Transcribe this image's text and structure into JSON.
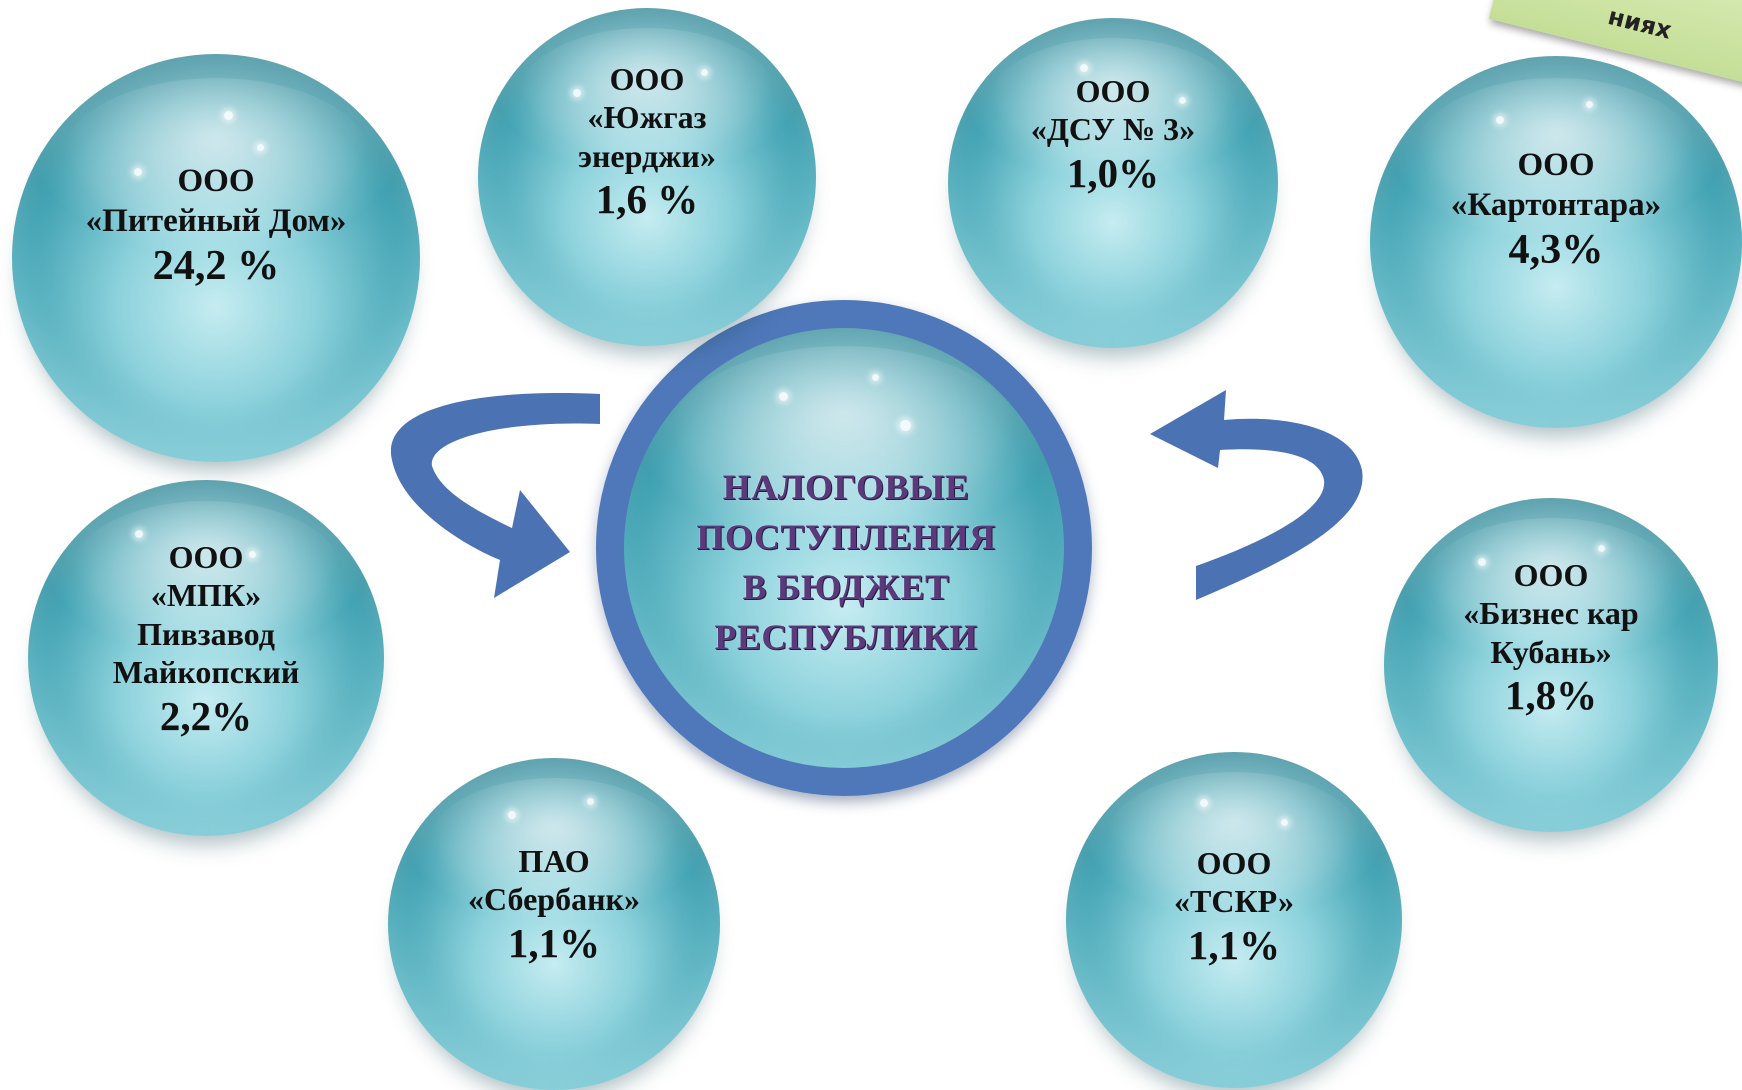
{
  "center": {
    "lines": [
      "НАЛОГОВЫЕ",
      "ПОСТУПЛЕНИЯ",
      "В БЮДЖЕТ",
      "РЕСПУБЛИКИ"
    ]
  },
  "corner_note": {
    "text": "ниях"
  },
  "companies": [
    {
      "id": "piteyny-dom",
      "lines": [
        "ООО",
        "«Питейный Дом»"
      ],
      "share": "24,2 %"
    },
    {
      "id": "yuzhgaz",
      "lines": [
        "ООО",
        "«Южгаз",
        "энерджи»"
      ],
      "share": "1,6 %"
    },
    {
      "id": "dsu3",
      "lines": [
        "ООО",
        "«ДСУ № 3»"
      ],
      "share": "1,0%"
    },
    {
      "id": "kartontara",
      "lines": [
        "ООО",
        "«Картонтара»"
      ],
      "share": "4,3%"
    },
    {
      "id": "mpk",
      "lines": [
        "ООО",
        "«МПК»",
        "Пивзавод",
        "Майкопский"
      ],
      "share": "2,2%"
    },
    {
      "id": "biznes-kar",
      "lines": [
        "ООО",
        "«Бизнес кар",
        "Кубань»"
      ],
      "share": "1,8%"
    },
    {
      "id": "sberbank",
      "lines": [
        "ПАО",
        "«Сбербанк»"
      ],
      "share": "1,1%"
    },
    {
      "id": "tskr",
      "lines": [
        "ООО",
        "«ТСКР»"
      ],
      "share": "1,1%"
    }
  ],
  "colors": {
    "ring": "#4e78b9",
    "arrow": "#4b73b3",
    "center_text": "#5a3a7a",
    "sphere_core": "#3fa1b1"
  }
}
